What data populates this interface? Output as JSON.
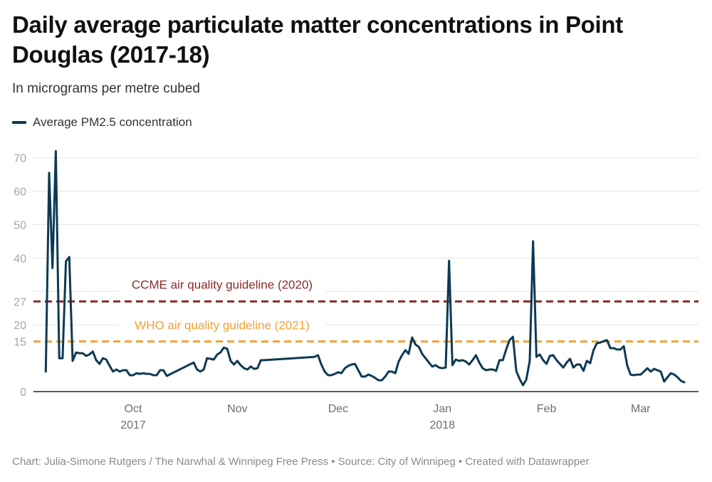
{
  "header": {
    "title": "Daily average particulate matter concentrations in Point Douglas (2017-18)",
    "subtitle": "In micrograms per metre cubed"
  },
  "legend": {
    "items": [
      {
        "label": "Average PM2.5 concentration",
        "color": "#0d3a52"
      }
    ]
  },
  "footer": {
    "text": "Chart: Julia-Simone Rutgers / The Narwhal & Winnipeg Free Press • Source: City of Winnipeg • Created with Datawrapper"
  },
  "chart_data": {
    "type": "line",
    "title": "Daily average particulate matter concentrations in Point Douglas (2017-18)",
    "subtitle": "In micrograms per metre cubed",
    "xlabel": "",
    "ylabel": "",
    "xlim": [
      "2017-09-05",
      "2018-03-14"
    ],
    "ylim": [
      0,
      72
    ],
    "grid": true,
    "legend_position": "top-left",
    "y_ticks": [
      0,
      15,
      20,
      27,
      40,
      50,
      60,
      70
    ],
    "y_gridlines": [
      20,
      30,
      40,
      50,
      60,
      70
    ],
    "x_ticks": [
      {
        "date": "2017-10-01",
        "label": "Oct",
        "sublabel": "2017"
      },
      {
        "date": "2017-11-01",
        "label": "Nov",
        "sublabel": ""
      },
      {
        "date": "2017-12-01",
        "label": "Dec",
        "sublabel": ""
      },
      {
        "date": "2018-01-01",
        "label": "Jan",
        "sublabel": "2018"
      },
      {
        "date": "2018-02-01",
        "label": "Feb",
        "sublabel": ""
      },
      {
        "date": "2018-03-01",
        "label": "Mar",
        "sublabel": ""
      }
    ],
    "reference_lines": [
      {
        "value": 27,
        "label": "CCME air quality guideline (2020)",
        "color": "#8b2a2a"
      },
      {
        "value": 15,
        "label": "WHO air quality guideline (2021)",
        "color": "#f5a030"
      }
    ],
    "series": [
      {
        "name": "Average PM2.5 concentration",
        "color": "#0d3a52",
        "points": [
          [
            "2017-09-05",
            6.0
          ],
          [
            "2017-09-06",
            65.5
          ],
          [
            "2017-09-07",
            37.0
          ],
          [
            "2017-09-08",
            72.0
          ],
          [
            "2017-09-09",
            10.0
          ],
          [
            "2017-09-10",
            10.0
          ],
          [
            "2017-09-11",
            39.0
          ],
          [
            "2017-09-12",
            40.3
          ],
          [
            "2017-09-13",
            9.2
          ],
          [
            "2017-09-14",
            11.7
          ],
          [
            "2017-09-15",
            11.5
          ],
          [
            "2017-09-16",
            11.5
          ],
          [
            "2017-09-17",
            10.7
          ],
          [
            "2017-09-18",
            11.1
          ],
          [
            "2017-09-19",
            12.0
          ],
          [
            "2017-09-20",
            9.4
          ],
          [
            "2017-09-21",
            8.3
          ],
          [
            "2017-09-22",
            10.0
          ],
          [
            "2017-09-23",
            9.6
          ],
          [
            "2017-09-24",
            7.7
          ],
          [
            "2017-09-25",
            6.0
          ],
          [
            "2017-09-26",
            6.6
          ],
          [
            "2017-09-27",
            6.0
          ],
          [
            "2017-09-28",
            6.4
          ],
          [
            "2017-09-29",
            6.4
          ],
          [
            "2017-09-30",
            4.9
          ],
          [
            "2017-10-01",
            4.9
          ],
          [
            "2017-10-02",
            5.5
          ],
          [
            "2017-10-03",
            5.3
          ],
          [
            "2017-10-04",
            5.5
          ],
          [
            "2017-10-05",
            5.3
          ],
          [
            "2017-10-06",
            5.3
          ],
          [
            "2017-10-07",
            4.9
          ],
          [
            "2017-10-08",
            4.9
          ],
          [
            "2017-10-09",
            6.4
          ],
          [
            "2017-10-10",
            6.4
          ],
          [
            "2017-10-11",
            4.7
          ],
          [
            "2017-10-19",
            8.7
          ],
          [
            "2017-10-20",
            6.6
          ],
          [
            "2017-10-21",
            6.0
          ],
          [
            "2017-10-22",
            6.6
          ],
          [
            "2017-10-23",
            10.0
          ],
          [
            "2017-10-24",
            9.8
          ],
          [
            "2017-10-25",
            9.6
          ],
          [
            "2017-10-26",
            11.1
          ],
          [
            "2017-10-27",
            11.7
          ],
          [
            "2017-10-28",
            13.2
          ],
          [
            "2017-10-29",
            12.8
          ],
          [
            "2017-10-30",
            9.2
          ],
          [
            "2017-10-31",
            8.1
          ],
          [
            "2017-11-01",
            9.2
          ],
          [
            "2017-11-02",
            7.9
          ],
          [
            "2017-11-03",
            7.0
          ],
          [
            "2017-11-04",
            6.6
          ],
          [
            "2017-11-05",
            7.5
          ],
          [
            "2017-11-06",
            6.8
          ],
          [
            "2017-11-07",
            7.0
          ],
          [
            "2017-11-08",
            9.4
          ],
          [
            "2017-11-09",
            9.4
          ],
          [
            "2017-11-24",
            10.4
          ],
          [
            "2017-11-25",
            10.9
          ],
          [
            "2017-11-26",
            8.1
          ],
          [
            "2017-11-27",
            6.0
          ],
          [
            "2017-11-28",
            4.9
          ],
          [
            "2017-11-29",
            4.9
          ],
          [
            "2017-11-30",
            5.3
          ],
          [
            "2017-12-01",
            5.8
          ],
          [
            "2017-12-02",
            5.5
          ],
          [
            "2017-12-03",
            7.0
          ],
          [
            "2017-12-04",
            7.7
          ],
          [
            "2017-12-05",
            8.1
          ],
          [
            "2017-12-06",
            8.3
          ],
          [
            "2017-12-07",
            6.4
          ],
          [
            "2017-12-08",
            4.5
          ],
          [
            "2017-12-09",
            4.5
          ],
          [
            "2017-12-10",
            5.1
          ],
          [
            "2017-12-11",
            4.7
          ],
          [
            "2017-12-12",
            4.1
          ],
          [
            "2017-12-13",
            3.4
          ],
          [
            "2017-12-14",
            3.4
          ],
          [
            "2017-12-15",
            4.5
          ],
          [
            "2017-12-16",
            6.0
          ],
          [
            "2017-12-17",
            6.0
          ],
          [
            "2017-12-18",
            5.5
          ],
          [
            "2017-12-19",
            9.0
          ],
          [
            "2017-12-20",
            10.9
          ],
          [
            "2017-12-21",
            12.4
          ],
          [
            "2017-12-22",
            11.3
          ],
          [
            "2017-12-23",
            16.2
          ],
          [
            "2017-12-24",
            14.1
          ],
          [
            "2017-12-25",
            13.4
          ],
          [
            "2017-12-26",
            11.3
          ],
          [
            "2017-12-27",
            10.0
          ],
          [
            "2017-12-28",
            8.7
          ],
          [
            "2017-12-29",
            7.5
          ],
          [
            "2017-12-30",
            7.9
          ],
          [
            "2017-12-31",
            7.2
          ],
          [
            "2018-01-01",
            7.0
          ],
          [
            "2018-01-02",
            7.2
          ],
          [
            "2018-01-03",
            39.2
          ],
          [
            "2018-01-04",
            7.9
          ],
          [
            "2018-01-05",
            9.6
          ],
          [
            "2018-01-06",
            9.2
          ],
          [
            "2018-01-07",
            9.4
          ],
          [
            "2018-01-08",
            9.0
          ],
          [
            "2018-01-09",
            8.1
          ],
          [
            "2018-01-10",
            9.4
          ],
          [
            "2018-01-11",
            10.9
          ],
          [
            "2018-01-12",
            8.7
          ],
          [
            "2018-01-13",
            7.0
          ],
          [
            "2018-01-14",
            6.4
          ],
          [
            "2018-01-15",
            6.6
          ],
          [
            "2018-01-16",
            6.6
          ],
          [
            "2018-01-17",
            6.2
          ],
          [
            "2018-01-18",
            9.4
          ],
          [
            "2018-01-19",
            9.4
          ],
          [
            "2018-01-20",
            12.6
          ],
          [
            "2018-01-21",
            15.4
          ],
          [
            "2018-01-22",
            16.4
          ],
          [
            "2018-01-23",
            6.2
          ],
          [
            "2018-01-24",
            3.8
          ],
          [
            "2018-01-25",
            1.9
          ],
          [
            "2018-01-26",
            3.6
          ],
          [
            "2018-01-27",
            9.2
          ],
          [
            "2018-01-28",
            45.0
          ],
          [
            "2018-01-29",
            10.4
          ],
          [
            "2018-01-30",
            11.1
          ],
          [
            "2018-01-31",
            9.4
          ],
          [
            "2018-02-01",
            8.3
          ],
          [
            "2018-02-02",
            10.7
          ],
          [
            "2018-02-03",
            10.9
          ],
          [
            "2018-02-04",
            9.4
          ],
          [
            "2018-02-05",
            8.3
          ],
          [
            "2018-02-06",
            7.2
          ],
          [
            "2018-02-07",
            8.7
          ],
          [
            "2018-02-08",
            9.8
          ],
          [
            "2018-02-09",
            7.2
          ],
          [
            "2018-02-10",
            8.1
          ],
          [
            "2018-02-11",
            8.1
          ],
          [
            "2018-02-12",
            6.2
          ],
          [
            "2018-02-13",
            9.2
          ],
          [
            "2018-02-14",
            8.5
          ],
          [
            "2018-02-15",
            12.4
          ],
          [
            "2018-02-16",
            14.5
          ],
          [
            "2018-02-17",
            14.7
          ],
          [
            "2018-02-18",
            15.1
          ],
          [
            "2018-02-19",
            15.4
          ],
          [
            "2018-02-20",
            13.0
          ],
          [
            "2018-02-21",
            13.0
          ],
          [
            "2018-02-22",
            12.6
          ],
          [
            "2018-02-23",
            12.6
          ],
          [
            "2018-02-24",
            13.6
          ],
          [
            "2018-02-25",
            7.9
          ],
          [
            "2018-02-26",
            5.1
          ],
          [
            "2018-02-27",
            4.9
          ],
          [
            "2018-02-28",
            5.1
          ],
          [
            "2018-03-01",
            5.1
          ],
          [
            "2018-03-02",
            6.0
          ],
          [
            "2018-03-03",
            7.0
          ],
          [
            "2018-03-04",
            6.0
          ],
          [
            "2018-03-05",
            6.8
          ],
          [
            "2018-03-06",
            6.4
          ],
          [
            "2018-03-07",
            6.0
          ],
          [
            "2018-03-08",
            3.0
          ],
          [
            "2018-03-09",
            4.3
          ],
          [
            "2018-03-10",
            5.5
          ],
          [
            "2018-03-11",
            5.1
          ],
          [
            "2018-03-12",
            4.3
          ],
          [
            "2018-03-13",
            3.2
          ],
          [
            "2018-03-14",
            2.8
          ]
        ]
      }
    ]
  }
}
